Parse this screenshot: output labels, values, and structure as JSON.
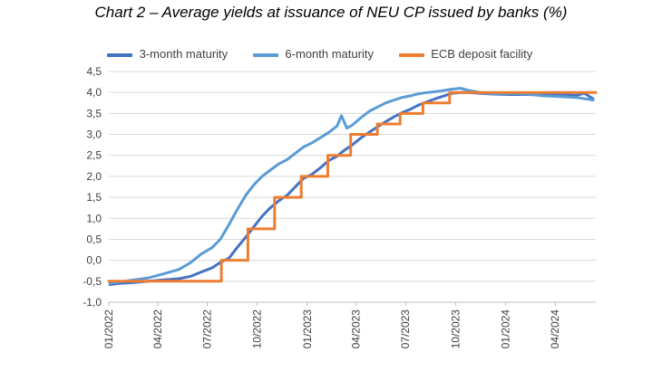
{
  "chart_data": {
    "type": "line",
    "title": "Chart 2 – Average yields at issuance of NEU CP issued by banks (%)",
    "xlabel": "",
    "ylabel": "",
    "ylim": [
      -1.0,
      4.5
    ],
    "yticks": [
      "-1,0",
      "-0,5",
      "0,0",
      "0,5",
      "1,0",
      "1,5",
      "2,0",
      "2,5",
      "3,0",
      "3,5",
      "4,0",
      "4,5"
    ],
    "xlim": [
      "2022-01-01",
      "2024-06-15"
    ],
    "xticks": [
      {
        "date": "2022-01-01",
        "label": "01/2022"
      },
      {
        "date": "2022-04-01",
        "label": "04/2022"
      },
      {
        "date": "2022-07-01",
        "label": "07/2022"
      },
      {
        "date": "2022-10-01",
        "label": "10/2022"
      },
      {
        "date": "2023-01-01",
        "label": "01/2023"
      },
      {
        "date": "2023-04-01",
        "label": "04/2023"
      },
      {
        "date": "2023-07-01",
        "label": "07/2023"
      },
      {
        "date": "2023-10-01",
        "label": "10/2023"
      },
      {
        "date": "2024-01-01",
        "label": "01/2024"
      },
      {
        "date": "2024-04-01",
        "label": "04/2024"
      }
    ],
    "grid": true,
    "legend_position": "top",
    "series": [
      {
        "name": "3-month maturity",
        "color": "#4472c4",
        "points": [
          [
            "2022-01-03",
            -0.58
          ],
          [
            "2022-01-20",
            -0.55
          ],
          [
            "2022-02-15",
            -0.53
          ],
          [
            "2022-03-15",
            -0.5
          ],
          [
            "2022-04-10",
            -0.47
          ],
          [
            "2022-05-10",
            -0.44
          ],
          [
            "2022-06-01",
            -0.38
          ],
          [
            "2022-06-20",
            -0.28
          ],
          [
            "2022-07-10",
            -0.18
          ],
          [
            "2022-07-25",
            -0.05
          ],
          [
            "2022-08-10",
            0.05
          ],
          [
            "2022-08-25",
            0.3
          ],
          [
            "2022-09-10",
            0.55
          ],
          [
            "2022-09-25",
            0.8
          ],
          [
            "2022-10-10",
            1.05
          ],
          [
            "2022-10-25",
            1.25
          ],
          [
            "2022-11-10",
            1.42
          ],
          [
            "2022-11-25",
            1.55
          ],
          [
            "2022-12-10",
            1.75
          ],
          [
            "2022-12-25",
            1.95
          ],
          [
            "2023-01-10",
            2.05
          ],
          [
            "2023-01-25",
            2.2
          ],
          [
            "2023-02-10",
            2.38
          ],
          [
            "2023-02-25",
            2.48
          ],
          [
            "2023-03-10",
            2.62
          ],
          [
            "2023-03-25",
            2.75
          ],
          [
            "2023-04-10",
            2.92
          ],
          [
            "2023-04-25",
            3.05
          ],
          [
            "2023-05-10",
            3.18
          ],
          [
            "2023-05-25",
            3.3
          ],
          [
            "2023-06-10",
            3.42
          ],
          [
            "2023-06-25",
            3.52
          ],
          [
            "2023-07-10",
            3.6
          ],
          [
            "2023-07-25",
            3.7
          ],
          [
            "2023-08-10",
            3.78
          ],
          [
            "2023-08-25",
            3.85
          ],
          [
            "2023-09-10",
            3.92
          ],
          [
            "2023-09-25",
            3.98
          ],
          [
            "2023-10-10",
            4.0
          ],
          [
            "2023-10-25",
            4.0
          ],
          [
            "2023-11-15",
            3.98
          ],
          [
            "2023-12-10",
            3.96
          ],
          [
            "2024-01-10",
            3.95
          ],
          [
            "2024-02-10",
            3.95
          ],
          [
            "2024-03-10",
            3.94
          ],
          [
            "2024-04-10",
            3.95
          ],
          [
            "2024-05-10",
            3.93
          ],
          [
            "2024-05-25",
            3.98
          ],
          [
            "2024-06-10",
            3.85
          ]
        ]
      },
      {
        "name": "6-month maturity",
        "color": "#5b9bd5",
        "points": [
          [
            "2022-01-03",
            -0.55
          ],
          [
            "2022-01-20",
            -0.52
          ],
          [
            "2022-02-15",
            -0.47
          ],
          [
            "2022-03-15",
            -0.42
          ],
          [
            "2022-04-10",
            -0.33
          ],
          [
            "2022-05-10",
            -0.22
          ],
          [
            "2022-06-01",
            -0.05
          ],
          [
            "2022-06-20",
            0.15
          ],
          [
            "2022-07-10",
            0.3
          ],
          [
            "2022-07-25",
            0.5
          ],
          [
            "2022-08-10",
            0.85
          ],
          [
            "2022-08-25",
            1.2
          ],
          [
            "2022-09-10",
            1.55
          ],
          [
            "2022-09-25",
            1.8
          ],
          [
            "2022-10-10",
            2.0
          ],
          [
            "2022-10-25",
            2.15
          ],
          [
            "2022-11-10",
            2.3
          ],
          [
            "2022-11-25",
            2.4
          ],
          [
            "2022-12-10",
            2.55
          ],
          [
            "2022-12-25",
            2.7
          ],
          [
            "2023-01-10",
            2.8
          ],
          [
            "2023-01-25",
            2.92
          ],
          [
            "2023-02-10",
            3.05
          ],
          [
            "2023-02-25",
            3.2
          ],
          [
            "2023-03-05",
            3.45
          ],
          [
            "2023-03-15",
            3.15
          ],
          [
            "2023-03-25",
            3.22
          ],
          [
            "2023-04-10",
            3.4
          ],
          [
            "2023-04-25",
            3.55
          ],
          [
            "2023-05-10",
            3.65
          ],
          [
            "2023-05-25",
            3.75
          ],
          [
            "2023-06-10",
            3.82
          ],
          [
            "2023-06-25",
            3.88
          ],
          [
            "2023-07-10",
            3.92
          ],
          [
            "2023-07-25",
            3.97
          ],
          [
            "2023-08-10",
            4.0
          ],
          [
            "2023-08-25",
            4.02
          ],
          [
            "2023-09-10",
            4.05
          ],
          [
            "2023-09-25",
            4.08
          ],
          [
            "2023-10-10",
            4.1
          ],
          [
            "2023-10-25",
            4.05
          ],
          [
            "2023-11-15",
            4.0
          ],
          [
            "2023-12-10",
            3.97
          ],
          [
            "2024-01-10",
            3.98
          ],
          [
            "2024-02-10",
            3.96
          ],
          [
            "2024-03-10",
            3.92
          ],
          [
            "2024-04-10",
            3.9
          ],
          [
            "2024-05-10",
            3.88
          ],
          [
            "2024-06-10",
            3.82
          ]
        ]
      },
      {
        "name": "ECB deposit facility",
        "color": "#ed7d31",
        "step": true,
        "points": [
          [
            "2022-01-01",
            -0.5
          ],
          [
            "2022-07-27",
            0.0
          ],
          [
            "2022-09-14",
            0.75
          ],
          [
            "2022-11-02",
            1.5
          ],
          [
            "2022-12-21",
            2.0
          ],
          [
            "2023-02-08",
            2.5
          ],
          [
            "2023-03-22",
            3.0
          ],
          [
            "2023-05-10",
            3.25
          ],
          [
            "2023-06-21",
            3.5
          ],
          [
            "2023-08-02",
            3.75
          ],
          [
            "2023-09-20",
            4.0
          ],
          [
            "2024-06-15",
            4.0
          ]
        ]
      }
    ]
  }
}
